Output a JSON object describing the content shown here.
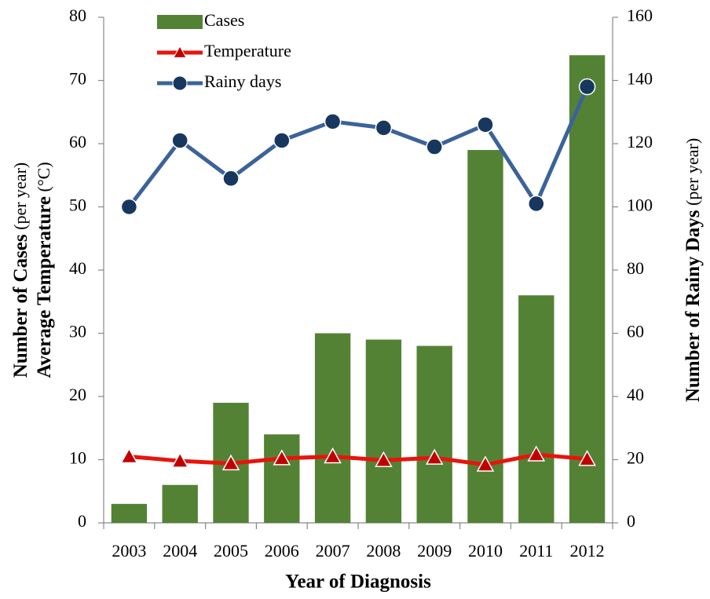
{
  "chart_data": {
    "type": "bar",
    "x_label": "Year of Diagnosis",
    "y_label": [
      "Number of Cases",
      "(per year)"
    ],
    "y_label_2": [
      "Average Temperature",
      "(°C)"
    ],
    "y2_label": [
      "Number of Rainy Days",
      "(per year)"
    ],
    "categories": [
      "2003",
      "2004",
      "2005",
      "2006",
      "2007",
      "2008",
      "2009",
      "2010",
      "2011",
      "2012"
    ],
    "series": [
      {
        "name": "Cases",
        "type": "bar",
        "color": "#548235",
        "values": [
          3,
          6,
          19,
          14,
          30,
          29,
          28,
          59,
          36,
          74
        ]
      },
      {
        "name": "Temperature",
        "type": "line",
        "color": "#e8140c",
        "marker": "triangle",
        "marker_color": "#c00000",
        "values": [
          10.5,
          9.8,
          9.4,
          10.2,
          10.5,
          9.9,
          10.3,
          9.2,
          10.8,
          10.1
        ]
      },
      {
        "name": "Rainy days",
        "type": "line",
        "axis": "y2",
        "color": "#3b6399",
        "marker": "circle",
        "marker_color": "#17375e",
        "values": [
          100,
          121,
          109,
          121,
          127,
          125,
          119,
          126,
          101,
          138
        ]
      }
    ],
    "ylim": [
      0,
      80
    ],
    "yticks": [
      0,
      10,
      20,
      30,
      40,
      50,
      60,
      70,
      80
    ],
    "y2lim": [
      0,
      160
    ],
    "y2ticks": [
      0,
      20,
      40,
      60,
      80,
      100,
      120,
      140,
      160
    ],
    "legend": "upper left"
  }
}
